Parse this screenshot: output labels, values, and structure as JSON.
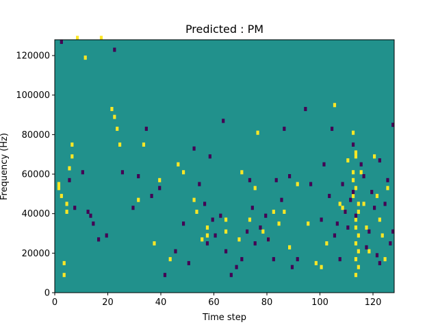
{
  "chart_data": {
    "type": "heatmap",
    "title": "Predicted : PM",
    "xlabel": "Time step",
    "ylabel": "Frequency (Hz)",
    "xlim": [
      0,
      128
    ],
    "ylim": [
      0,
      128000
    ],
    "x_ticks": [
      "0",
      "20",
      "40",
      "60",
      "80",
      "100",
      "120"
    ],
    "y_ticks": [
      "0",
      "20000",
      "40000",
      "60000",
      "80000",
      "100000",
      "120000"
    ],
    "colormap": "viridis",
    "colors": {
      "background": "#21918c",
      "high": "#fde725",
      "low": "#440154"
    },
    "grid": false,
    "legend": "none",
    "columns": 128,
    "rows": 64,
    "high_cells": [
      [
        1,
        27
      ],
      [
        1,
        26
      ],
      [
        2,
        24
      ],
      [
        3,
        7
      ],
      [
        3,
        4
      ],
      [
        4,
        20
      ],
      [
        4,
        22
      ],
      [
        5,
        31
      ],
      [
        6,
        34
      ],
      [
        6,
        37
      ],
      [
        8,
        64
      ],
      [
        11,
        59
      ],
      [
        17,
        64
      ],
      [
        21,
        46
      ],
      [
        22,
        44
      ],
      [
        23,
        41
      ],
      [
        24,
        37
      ],
      [
        31,
        23
      ],
      [
        33,
        37
      ],
      [
        37,
        12
      ],
      [
        39,
        28
      ],
      [
        43,
        8
      ],
      [
        46,
        32
      ],
      [
        48,
        30
      ],
      [
        52,
        23
      ],
      [
        53,
        20
      ],
      [
        55,
        13
      ],
      [
        57,
        14
      ],
      [
        57,
        16
      ],
      [
        64,
        18
      ],
      [
        64,
        15
      ],
      [
        69,
        13
      ],
      [
        70,
        30
      ],
      [
        73,
        18
      ],
      [
        75,
        26
      ],
      [
        76,
        40
      ],
      [
        78,
        15
      ],
      [
        80,
        13
      ],
      [
        82,
        20
      ],
      [
        84,
        17
      ],
      [
        86,
        20
      ],
      [
        88,
        11
      ],
      [
        91,
        27
      ],
      [
        95,
        17
      ],
      [
        98,
        7
      ],
      [
        100,
        6
      ],
      [
        102,
        12
      ],
      [
        105,
        47
      ],
      [
        107,
        22
      ],
      [
        108,
        21
      ],
      [
        109,
        20
      ],
      [
        110,
        33
      ],
      [
        112,
        40
      ],
      [
        113,
        35
      ],
      [
        113,
        34
      ],
      [
        112,
        30
      ],
      [
        112,
        28
      ],
      [
        113,
        26
      ],
      [
        112,
        24
      ],
      [
        114,
        22
      ],
      [
        114,
        20
      ],
      [
        113,
        18
      ],
      [
        113,
        16
      ],
      [
        114,
        14
      ],
      [
        113,
        12
      ],
      [
        114,
        10
      ],
      [
        113,
        8
      ],
      [
        114,
        6
      ],
      [
        113,
        4
      ],
      [
        115,
        30
      ],
      [
        116,
        22
      ],
      [
        117,
        16
      ],
      [
        118,
        10
      ],
      [
        120,
        34
      ],
      [
        121,
        24
      ],
      [
        122,
        18
      ],
      [
        123,
        14
      ],
      [
        124,
        8
      ],
      [
        125,
        26
      ]
    ],
    "low_cells": [
      [
        2,
        63
      ],
      [
        5,
        28
      ],
      [
        7,
        21
      ],
      [
        10,
        30
      ],
      [
        12,
        20
      ],
      [
        13,
        19
      ],
      [
        14,
        17
      ],
      [
        16,
        13
      ],
      [
        19,
        14
      ],
      [
        22,
        61
      ],
      [
        25,
        30
      ],
      [
        29,
        21
      ],
      [
        31,
        29
      ],
      [
        34,
        41
      ],
      [
        36,
        24
      ],
      [
        39,
        26
      ],
      [
        41,
        4
      ],
      [
        45,
        10
      ],
      [
        48,
        17
      ],
      [
        50,
        7
      ],
      [
        52,
        36
      ],
      [
        54,
        27
      ],
      [
        56,
        22
      ],
      [
        57,
        12
      ],
      [
        58,
        34
      ],
      [
        59,
        18
      ],
      [
        60,
        14
      ],
      [
        62,
        19
      ],
      [
        63,
        43
      ],
      [
        64,
        10
      ],
      [
        66,
        4
      ],
      [
        68,
        6
      ],
      [
        70,
        8
      ],
      [
        72,
        15
      ],
      [
        73,
        28
      ],
      [
        74,
        21
      ],
      [
        75,
        12
      ],
      [
        77,
        16
      ],
      [
        79,
        19
      ],
      [
        80,
        13
      ],
      [
        82,
        8
      ],
      [
        83,
        28
      ],
      [
        85,
        23
      ],
      [
        86,
        41
      ],
      [
        88,
        29
      ],
      [
        89,
        6
      ],
      [
        91,
        8
      ],
      [
        94,
        46
      ],
      [
        96,
        27
      ],
      [
        100,
        18
      ],
      [
        101,
        32
      ],
      [
        103,
        24
      ],
      [
        104,
        41
      ],
      [
        105,
        14
      ],
      [
        106,
        17
      ],
      [
        107,
        8
      ],
      [
        108,
        27
      ],
      [
        109,
        20
      ],
      [
        110,
        16
      ],
      [
        111,
        23
      ],
      [
        112,
        37
      ],
      [
        112,
        25
      ],
      [
        113,
        19
      ],
      [
        115,
        32
      ],
      [
        116,
        29
      ],
      [
        117,
        11
      ],
      [
        118,
        15
      ],
      [
        119,
        25
      ],
      [
        120,
        21
      ],
      [
        121,
        9
      ],
      [
        122,
        33
      ],
      [
        122,
        7
      ],
      [
        124,
        22
      ],
      [
        125,
        28
      ],
      [
        126,
        12
      ],
      [
        127,
        15
      ],
      [
        127,
        42
      ]
    ]
  }
}
